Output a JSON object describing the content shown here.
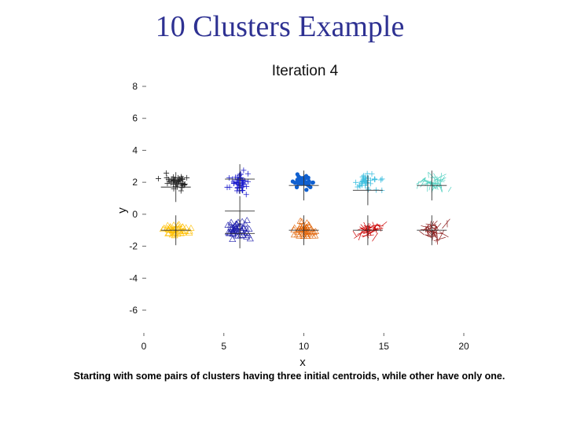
{
  "slide": {
    "title": "10 Clusters Example",
    "caption": "Starting with some pairs of clusters having three initial centroids, while other have only one."
  },
  "chart_data": {
    "type": "scatter",
    "title": "Iteration 4",
    "xlabel": "x",
    "ylabel": "y",
    "xlim": [
      0,
      20
    ],
    "ylim": [
      -6,
      8
    ],
    "xticks": [
      0,
      5,
      10,
      15,
      20
    ],
    "yticks": [
      -6,
      -4,
      -2,
      0,
      2,
      4,
      6,
      8
    ],
    "grid": false,
    "series": [
      {
        "color": "#222222",
        "marker": "plus",
        "center": [
          2,
          2
        ],
        "spread": [
          0.75,
          0.45
        ],
        "count": 40
      },
      {
        "color": "#ffbf00",
        "marker": "triangle",
        "center": [
          2,
          -1
        ],
        "spread": [
          0.75,
          0.3
        ],
        "count": 40
      },
      {
        "color": "#1a1acc",
        "marker": "plus",
        "center": [
          6,
          2
        ],
        "spread": [
          0.55,
          0.55
        ],
        "count": 45
      },
      {
        "color": "#1a1aaa",
        "marker": "triangle",
        "center": [
          6,
          -1
        ],
        "spread": [
          0.75,
          0.45
        ],
        "count": 45
      },
      {
        "color": "#1060d0",
        "marker": "dot",
        "center": [
          10,
          2
        ],
        "spread": [
          0.5,
          0.35
        ],
        "count": 40
      },
      {
        "color": "#e06000",
        "marker": "triangle",
        "center": [
          10,
          -1
        ],
        "spread": [
          0.75,
          0.45
        ],
        "count": 40
      },
      {
        "color": "#40c0e0",
        "marker": "plus",
        "center": [
          14,
          2
        ],
        "spread": [
          0.75,
          0.45
        ],
        "count": 35
      },
      {
        "color": "#cc0000",
        "marker": "line",
        "center": [
          14,
          -1
        ],
        "spread": [
          0.75,
          0.45
        ],
        "count": 40
      },
      {
        "color": "#50d0c0",
        "marker": "line",
        "center": [
          18,
          2
        ],
        "spread": [
          0.75,
          0.45
        ],
        "count": 40
      },
      {
        "color": "#8b1a1a",
        "marker": "line",
        "center": [
          18,
          -1
        ],
        "spread": [
          0.75,
          0.45
        ],
        "count": 40
      }
    ],
    "centroids": [
      [
        2,
        1.7
      ],
      [
        2,
        -1
      ],
      [
        6,
        2.2
      ],
      [
        6,
        0.2
      ],
      [
        6,
        -1.2
      ],
      [
        10,
        1.8
      ],
      [
        10,
        -1
      ],
      [
        14,
        1.5
      ],
      [
        14,
        -1
      ],
      [
        18,
        1.8
      ],
      [
        18,
        -1
      ]
    ]
  }
}
